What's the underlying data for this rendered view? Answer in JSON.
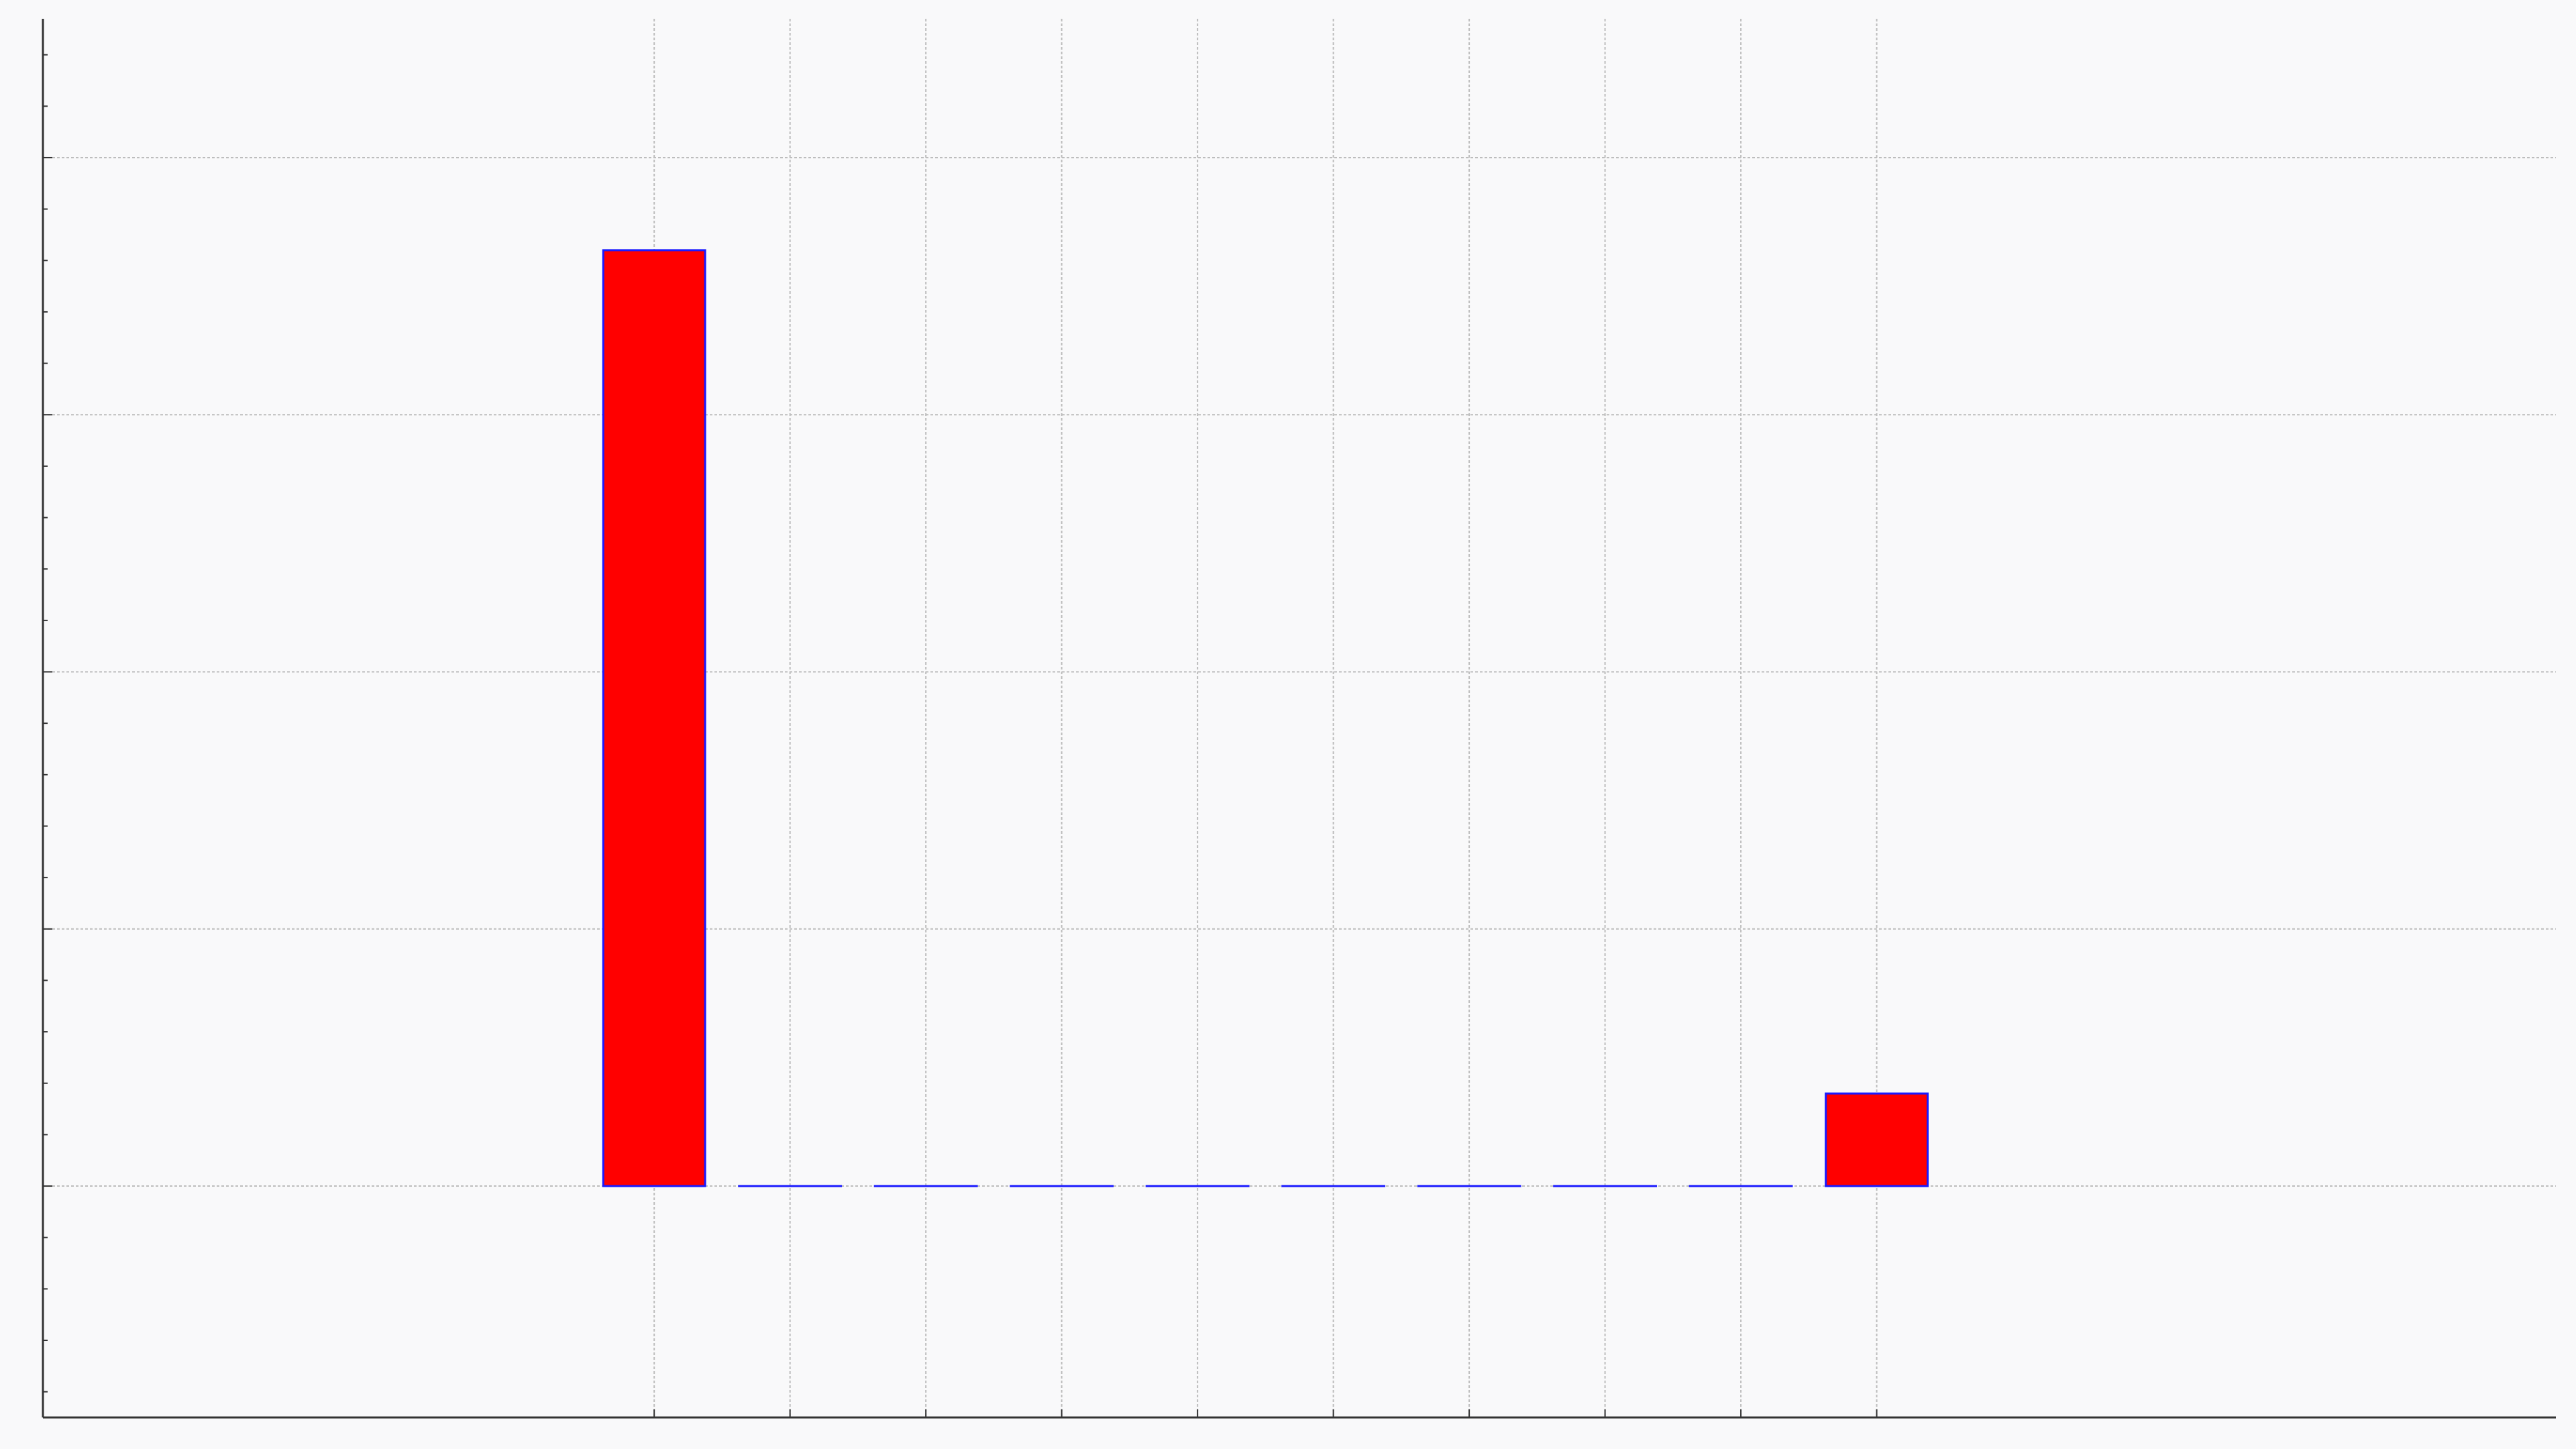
{
  "chart_data": {
    "type": "bar",
    "title": "",
    "xlabel": "",
    "ylabel": "",
    "x": [
      1,
      2,
      3,
      4,
      5,
      6,
      7,
      8,
      9,
      10
    ],
    "values": [
      1.82,
      0,
      0,
      0,
      0,
      0,
      0,
      0,
      0,
      0.18
    ],
    "xlim": [
      -3.5,
      15
    ],
    "ylim": [
      -0.45,
      2.27
    ],
    "y_major_ticks": [
      -0.0,
      0.5,
      1.0,
      1.5,
      2.0
    ],
    "grid": true,
    "legend": "none",
    "colors": {
      "background": "#f9f9fa",
      "bar_fill": "#ff0000",
      "bar_edge": "#1a1aff",
      "grid": "#bdbdbd",
      "axis": "#333333"
    }
  }
}
